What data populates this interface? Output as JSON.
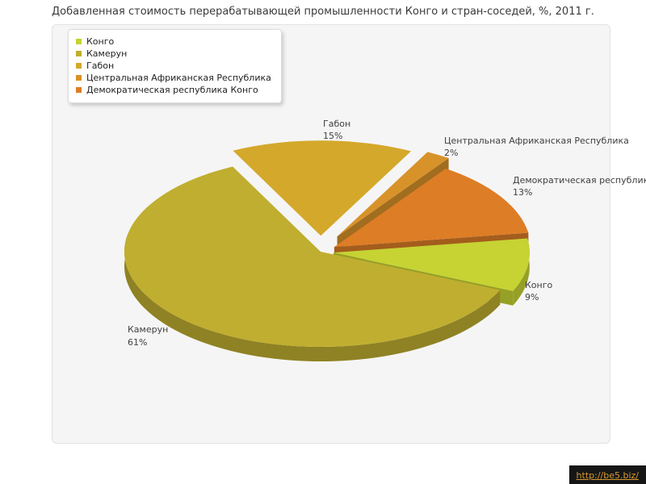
{
  "title": "Добавленная стоимость перерабатывающей промышленности Конго и стран-соседей, %, 2011 г.",
  "watermark": {
    "text": "http://be5.biz/"
  },
  "chart_data": {
    "type": "pie",
    "style": "3d-exploded",
    "title": "Добавленная стоимость перерабатывающей промышленности Конго и стран-соседей, %, 2011 г.",
    "unit": "%",
    "year": "2011",
    "legend_position": "top-left",
    "slices": [
      {
        "label": "Конго",
        "value": 9,
        "percent_label": "9%",
        "color": "#c6d333",
        "side_color": "#96a026"
      },
      {
        "label": "Камерун",
        "value": 61,
        "percent_label": "61%",
        "color": "#c0ae30",
        "side_color": "#8f8224"
      },
      {
        "label": "Габон",
        "value": 15,
        "percent_label": "15%",
        "color": "#d4a82b",
        "side_color": "#9e7d20"
      },
      {
        "label": "Центральная Африканская Республика",
        "value": 2,
        "percent_label": "2%",
        "color": "#d8922a",
        "side_color": "#a16d1f"
      },
      {
        "label": "Демократическая республика Конго",
        "value": 13,
        "percent_label": "13%",
        "color": "#dd7d26",
        "side_color": "#a45d1c"
      }
    ],
    "start_angle_deg": -26.6,
    "draw_order": [
      2,
      3,
      4,
      0,
      1
    ]
  }
}
